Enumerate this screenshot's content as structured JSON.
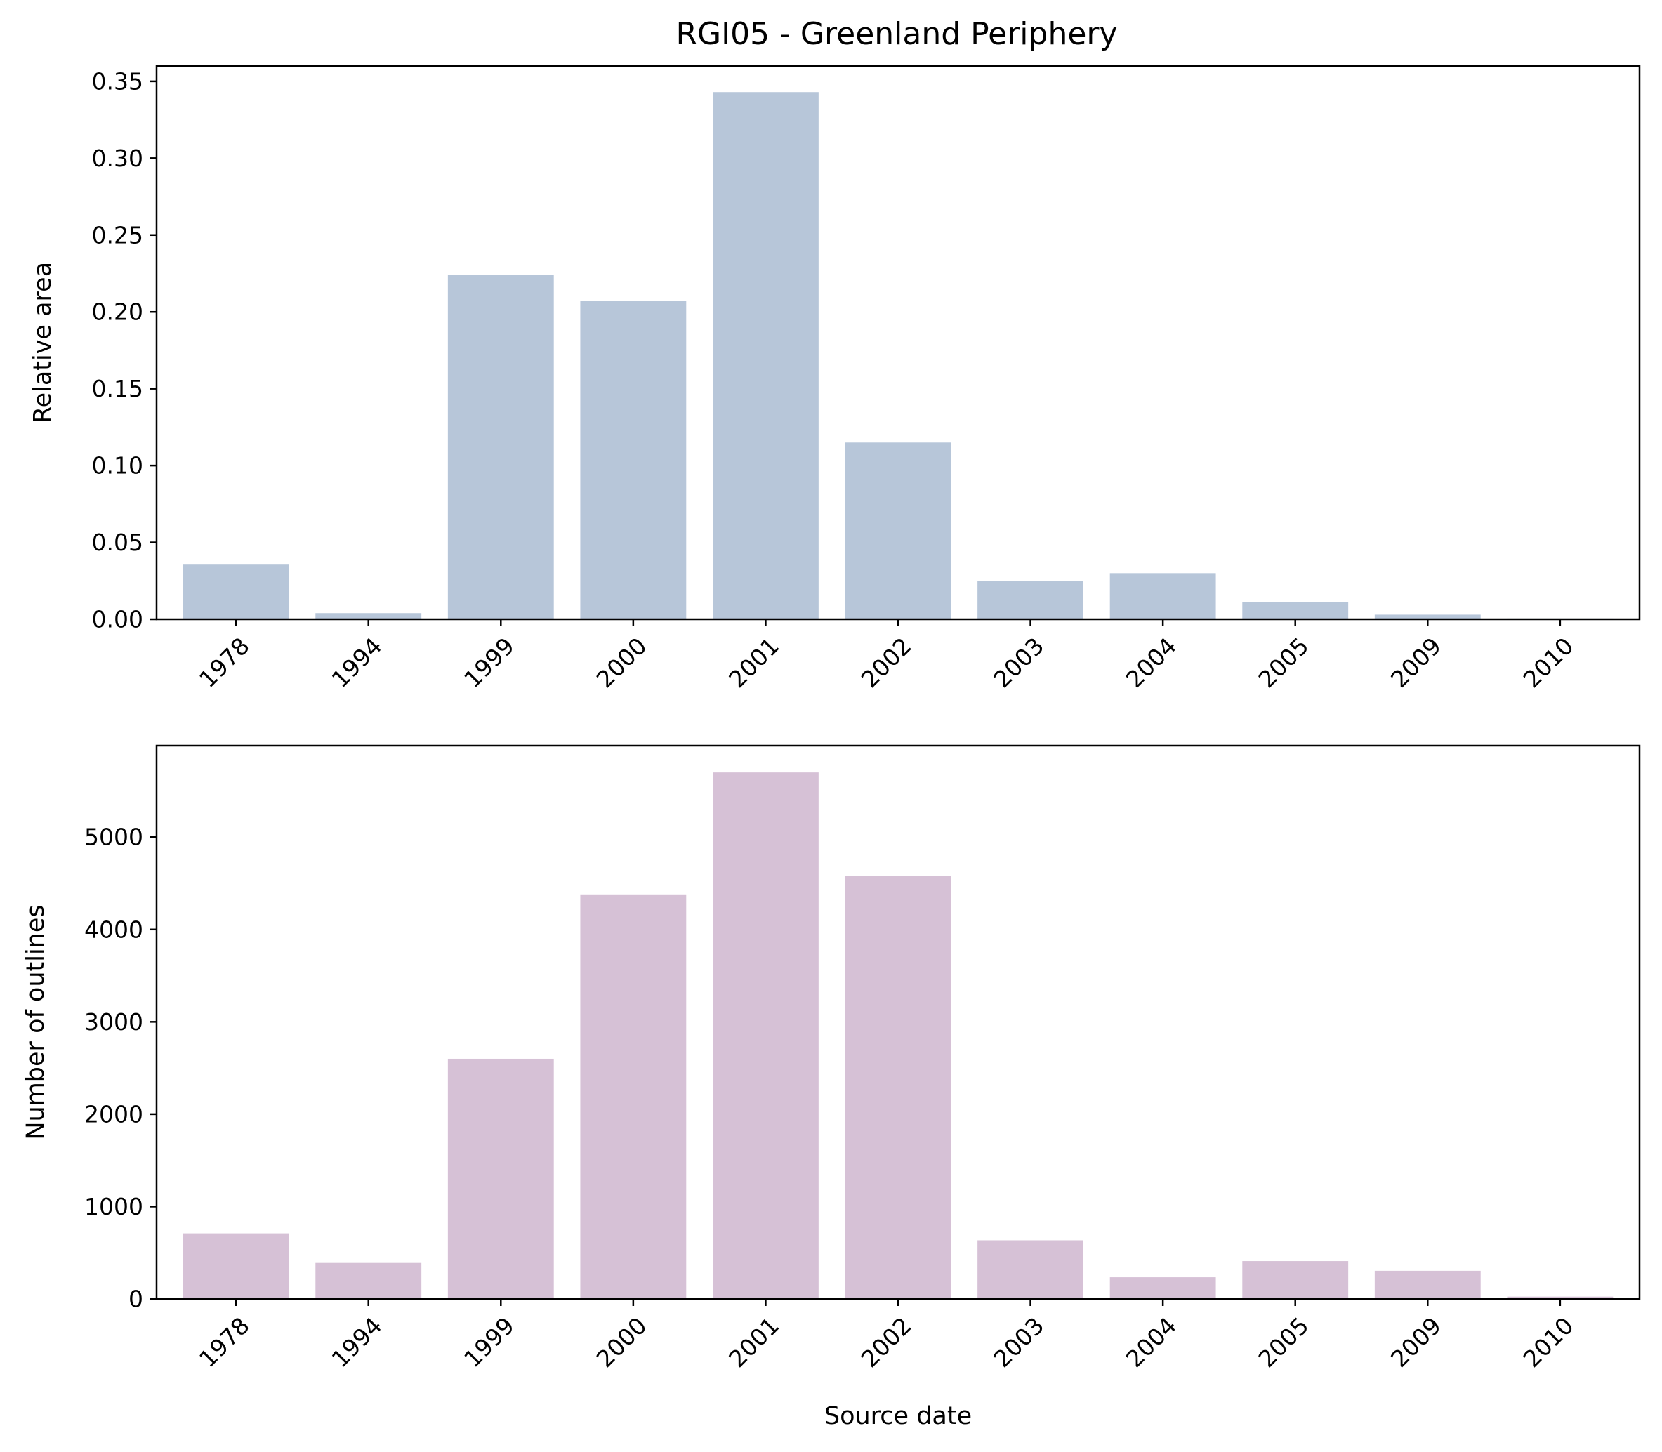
{
  "chart_data": [
    {
      "type": "bar",
      "title": "RGI05 - Greenland Periphery",
      "xlabel": "",
      "ylabel": "Relative area",
      "categories": [
        "1978",
        "1994",
        "1999",
        "2000",
        "2001",
        "2002",
        "2003",
        "2004",
        "2005",
        "2009",
        "2010"
      ],
      "values": [
        0.036,
        0.004,
        0.224,
        0.207,
        0.343,
        0.115,
        0.025,
        0.03,
        0.011,
        0.003,
        0.0005
      ],
      "ylim": [
        0,
        0.36
      ],
      "yticks": [
        0.0,
        0.05,
        0.1,
        0.15,
        0.2,
        0.25,
        0.3,
        0.35
      ],
      "ytick_labels": [
        "0.00",
        "0.05",
        "0.10",
        "0.15",
        "0.20",
        "0.25",
        "0.30",
        "0.35"
      ],
      "color": "#b7c6d9",
      "grid": false
    },
    {
      "type": "bar",
      "title": "",
      "xlabel": "Source date",
      "ylabel": "Number of outlines",
      "categories": [
        "1978",
        "1994",
        "1999",
        "2000",
        "2001",
        "2002",
        "2003",
        "2004",
        "2005",
        "2009",
        "2010"
      ],
      "values": [
        710,
        390,
        2600,
        4380,
        5700,
        4580,
        635,
        235,
        410,
        305,
        25
      ],
      "ylim": [
        0,
        5990
      ],
      "yticks": [
        0,
        1000,
        2000,
        3000,
        4000,
        5000
      ],
      "ytick_labels": [
        "0",
        "1000",
        "2000",
        "3000",
        "4000",
        "5000"
      ],
      "color": "#d6c1d6",
      "grid": false
    }
  ]
}
